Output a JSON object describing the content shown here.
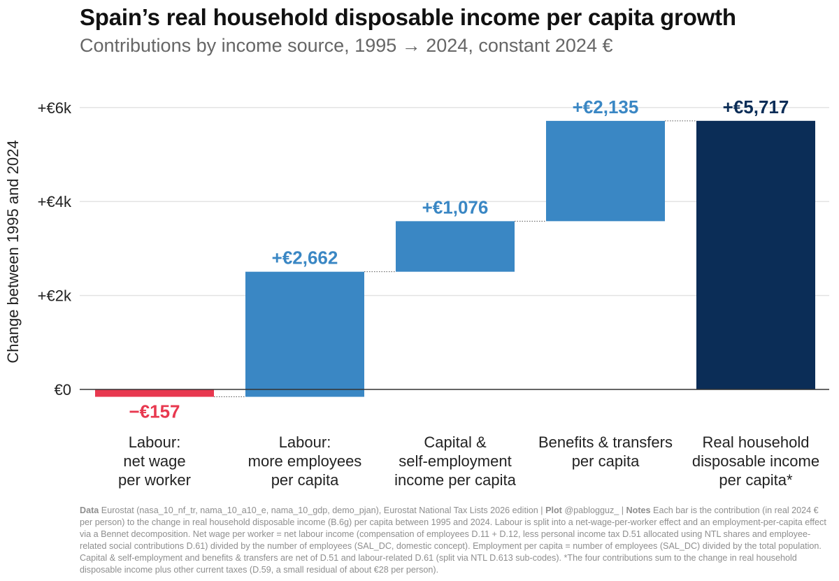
{
  "title": "Spain’s real household disposable income per capita growth",
  "subtitle": "Contributions by income source, 1995 → 2024, constant 2024 €",
  "chart_data": {
    "type": "bar",
    "subtype": "waterfall",
    "ylabel": "Change between 1995 and 2024",
    "ylim": [
      -400,
      6600
    ],
    "yticks": [
      0,
      2000,
      4000,
      6000
    ],
    "ytick_labels": [
      "€0",
      "+€2k",
      "+€4k",
      "+€6k"
    ],
    "grid": true,
    "categories": [
      [
        "Labour:",
        "net wage",
        "per worker"
      ],
      [
        "Labour:",
        "more employees",
        "per capita"
      ],
      [
        "Capital &",
        "self-employment",
        "income per capita"
      ],
      [
        "Benefits & transfers",
        "per capita"
      ],
      [
        "Real household",
        "disposable income",
        "per capita*"
      ]
    ],
    "values": [
      -157,
      2662,
      1076,
      2135,
      5717
    ],
    "value_labels": [
      "−€157",
      "+€2,662",
      "+€1,076",
      "+€2,135",
      "+€5,717"
    ],
    "is_total": [
      false,
      false,
      false,
      false,
      true
    ],
    "colors": {
      "negative": "#e8384f",
      "positive": "#3a87c4",
      "total": "#0b2d57",
      "grid": "#e3e3e3",
      "zero_line": "#333333"
    }
  },
  "footnote": {
    "data_label": "Data",
    "data_text": "Eurostat (nasa_10_nf_tr, nama_10_a10_e, nama_10_gdp, demo_pjan), Eurostat National Tax Lists 2026 edition |",
    "plot_label": "Plot",
    "plot_text": "@pablogguz_ |",
    "notes_label": "Notes",
    "notes_text": "Each bar is the contribution (in real 2024 € per person) to the change in real household disposable income (B.6g) per capita between 1995 and 2024. Labour is split into a net-wage-per-worker effect and an employment-per-capita effect via a Bennet decomposition. Net wage per worker = net labour income (compensation of employees D.11 + D.12, less personal income tax D.51 allocated using NTL shares and employee-related social contributions D.61) divided by the number of employees (SAL_DC, domestic concept). Employment per capita = number of employees (SAL_DC) divided by the total population. Capital & self-employment and benefits & transfers are net of D.51 and labour-related D.61 (split via NTL D.613 sub-codes). *The four contributions sum to the change in real household disposable income plus other current taxes (D.59, a small residual of about €28 per person)."
  }
}
